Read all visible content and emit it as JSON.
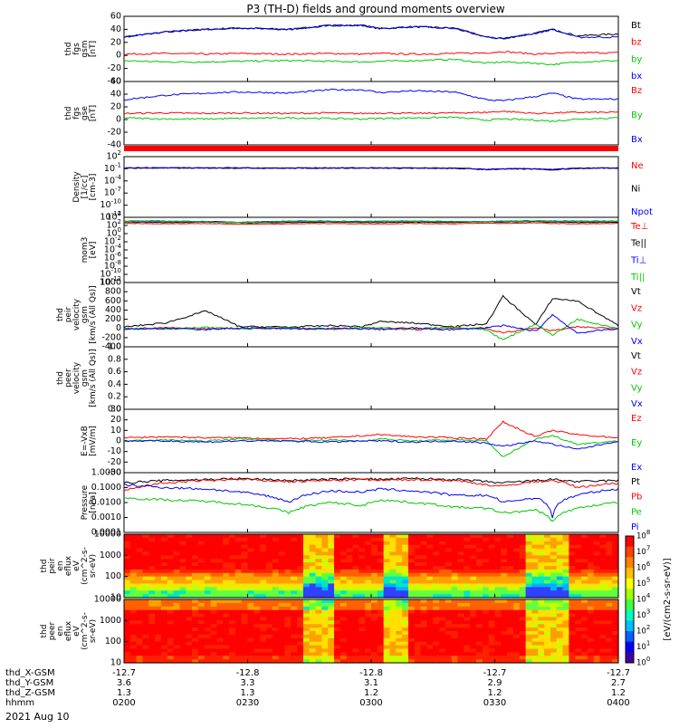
{
  "title": "P3 (TH-D) fields and ground moments overview",
  "date_label": "2021 Aug 10",
  "colorbar_label": "[eV/(cm2-s-sr-eV)]",
  "colorbar_ticks": [
    "10^8",
    "10^7",
    "10^6",
    "10^5",
    "10^4",
    "10^3",
    "10^2",
    "10^1",
    "10^0"
  ],
  "time_axis": {
    "row_labels": [
      "thd_X-GSM",
      "thd_Y-GSM",
      "thd_Z-GSM",
      "hhmm"
    ],
    "ticks": [
      {
        "t": 0,
        "values": [
          "-12.7",
          "3.6",
          "1.3",
          "0200"
        ]
      },
      {
        "t": 30,
        "values": [
          "-12.8",
          "3.3",
          "1.3",
          "0230"
        ]
      },
      {
        "t": 60,
        "values": [
          "-12.8",
          "3.1",
          "1.2",
          "0300"
        ]
      },
      {
        "t": 90,
        "values": [
          "-12.7",
          "2.9",
          "1.2",
          "0330"
        ]
      },
      {
        "t": 120,
        "values": [
          "-12.7",
          "2.7",
          "1.2",
          "0400"
        ]
      }
    ]
  },
  "panels": [
    {
      "id": "fgs_gsm",
      "ylabel": [
        "thd",
        "fgs",
        "gsm",
        "[nT]"
      ],
      "scale": "linear",
      "ylim": [
        -40,
        60
      ],
      "ticks": [
        "60",
        "40",
        "20",
        "0",
        "-20",
        "-40"
      ],
      "legend": [
        {
          "label": "Bt",
          "color": "#000000"
        },
        {
          "label": "bz",
          "color": "#ff0000"
        },
        {
          "label": "by",
          "color": "#00c800"
        },
        {
          "label": "bx",
          "color": "#0000ff"
        }
      ]
    },
    {
      "id": "fgs_gse",
      "ylabel": [
        "thd",
        "fgs",
        "gse",
        "[nT]"
      ],
      "scale": "linear",
      "ylim": [
        -55,
        60
      ],
      "ticks": [
        "60",
        "40",
        "20",
        "0",
        "-20",
        "-40"
      ],
      "legend": [
        {
          "label": "Bz",
          "color": "#ff0000"
        },
        {
          "label": "By",
          "color": "#00c800"
        },
        {
          "label": "Bx",
          "color": "#0000ff"
        }
      ]
    },
    {
      "id": "density",
      "ylabel": [
        "Density",
        "[1/cc]",
        "[cm-3]"
      ],
      "scale": "log",
      "ylim": [
        -13,
        3
      ],
      "ticks": [
        "10^2",
        "10^-1",
        "10^-4",
        "10^-7",
        "10^-10",
        "10^-12"
      ],
      "legend": [
        {
          "label": "Ne",
          "color": "#ff0000"
        },
        {
          "label": "Ni",
          "color": "#000000"
        },
        {
          "label": "Npot",
          "color": "#0000ff"
        }
      ]
    },
    {
      "id": "temperature",
      "ylabel": [
        "mom3",
        "[eV]"
      ],
      "scale": "log",
      "ylim": [
        -14,
        5
      ],
      "ticks": [
        "10^4",
        "10^2",
        "10^0",
        "10^-2",
        "10^-4",
        "10^-6",
        "10^-8",
        "10^-10",
        "10^-12"
      ],
      "legend": [
        {
          "label": "Te⊥",
          "color": "#ff0000"
        },
        {
          "label": "Te||",
          "color": "#000000"
        },
        {
          "label": "Ti⊥",
          "color": "#0000ff"
        },
        {
          "label": "Ti||",
          "color": "#00c800"
        }
      ]
    },
    {
      "id": "peir_velocity",
      "ylabel": [
        "thd",
        "peir",
        "velocity",
        "gsm",
        "[km/s (All Qs)]"
      ],
      "scale": "linear",
      "ylim": [
        -400,
        1000
      ],
      "ticks": [
        "1000",
        "800",
        "600",
        "400",
        "200",
        "0",
        "-200",
        "-400"
      ],
      "legend": [
        {
          "label": "Vt",
          "color": "#000000"
        },
        {
          "label": "Vz",
          "color": "#ff0000"
        },
        {
          "label": "Vy",
          "color": "#00c800"
        },
        {
          "label": "Vx",
          "color": "#0000ff"
        }
      ]
    },
    {
      "id": "peer_velocity",
      "ylabel": [
        "thd",
        "peer",
        "velocity",
        "gsm",
        "[km/s (All Qs)]"
      ],
      "scale": "linear",
      "ylim": [
        0,
        1
      ],
      "ticks": [
        "1.0",
        "0.8",
        "0.6",
        "0.4",
        "0.2",
        "0.0"
      ],
      "legend": [
        {
          "label": "Vt",
          "color": "#000000"
        },
        {
          "label": "Vz",
          "color": "#ff0000"
        },
        {
          "label": "Vy",
          "color": "#00c800"
        },
        {
          "label": "Vx",
          "color": "#0000ff"
        }
      ]
    },
    {
      "id": "efield",
      "ylabel": [
        "E=-VxB",
        "[mV/m]"
      ],
      "scale": "linear",
      "ylim": [
        -30,
        30
      ],
      "ticks": [
        "30",
        "20",
        "10",
        "0",
        "-10",
        "-20",
        "-30"
      ],
      "legend": [
        {
          "label": "Ez",
          "color": "#ff0000"
        },
        {
          "label": "Ey",
          "color": "#00c800"
        },
        {
          "label": "Ex",
          "color": "#0000ff"
        }
      ]
    },
    {
      "id": "pressure",
      "ylabel": [
        "Pressure",
        "[nPa]"
      ],
      "scale": "log",
      "ylim": [
        -4,
        0
      ],
      "ticks": [
        "1.0000",
        "0.1000",
        "0.0100",
        "0.0010",
        "0.0001"
      ],
      "legend": [
        {
          "label": "Pt",
          "color": "#000000"
        },
        {
          "label": "Pb",
          "color": "#ff0000"
        },
        {
          "label": "Pe",
          "color": "#00c800"
        },
        {
          "label": "Pi",
          "color": "#0000ff"
        }
      ]
    },
    {
      "id": "peir_spec",
      "ylabel": [
        "thd",
        "peir",
        "en",
        "eflux",
        "eV",
        "(cm^2-s-",
        "sr-eV)"
      ],
      "scale": "log",
      "ylim": [
        0.85,
        4.3
      ],
      "ticks": [
        "10000",
        "1000",
        "100",
        "10"
      ],
      "legend": []
    },
    {
      "id": "peer_spec",
      "ylabel": [
        "thd",
        "peer",
        "en",
        "eflux",
        "eV",
        "(cm^2-s-",
        "sr-eV)"
      ],
      "scale": "log",
      "ylim": [
        0.85,
        4.3
      ],
      "ticks": [
        "10000",
        "1000",
        "100",
        "10"
      ],
      "legend": []
    }
  ],
  "chart_data": {
    "type": "line",
    "title": "P3 (TH-D) fields and ground moments overview",
    "x_unit": "minutes after 2021 Aug 10 02:00 UT",
    "x": [
      0,
      10,
      20,
      28,
      40,
      50,
      58,
      62,
      70,
      80,
      88,
      92,
      100,
      104,
      110,
      120
    ],
    "panels": [
      {
        "id": "fgs_gsm",
        "series": [
          {
            "name": "Bt",
            "values": [
              28,
              36,
              40,
              42,
              40,
              46,
              46,
              41,
              44,
              42,
              28,
              26,
              34,
              40,
              30,
              33
            ]
          },
          {
            "name": "bz",
            "values": [
              2,
              3,
              2,
              3,
              2,
              3,
              2,
              3,
              2,
              3,
              4,
              6,
              2,
              3,
              4,
              4
            ]
          },
          {
            "name": "by",
            "values": [
              -8,
              -10,
              -10,
              -9,
              -8,
              -9,
              -10,
              -9,
              -8,
              -6,
              -12,
              -10,
              -12,
              -14,
              -10,
              -8
            ]
          },
          {
            "name": "bx",
            "values": [
              28,
              36,
              40,
              42,
              40,
              46,
              46,
              41,
              44,
              42,
              28,
              26,
              34,
              40,
              28,
              28
            ]
          }
        ]
      },
      {
        "id": "fgs_gse",
        "series": [
          {
            "name": "Bz",
            "values": [
              2,
              3,
              2,
              3,
              2,
              3,
              2,
              3,
              2,
              3,
              4,
              6,
              2,
              3,
              4,
              4
            ]
          },
          {
            "name": "By",
            "values": [
              -6,
              -8,
              -8,
              -7,
              -6,
              -7,
              -8,
              -7,
              -6,
              -5,
              -10,
              -8,
              -10,
              -12,
              -8,
              -6
            ]
          },
          {
            "name": "Bx",
            "values": [
              27,
              35,
              39,
              41,
              39,
              45,
              45,
              40,
              43,
              41,
              27,
              25,
              33,
              39,
              28,
              28
            ]
          }
        ]
      },
      {
        "id": "density",
        "series": [
          {
            "name": "Ne",
            "values": [
              1.0,
              1.0,
              1.0,
              1.1,
              0.9,
              1.0,
              1.0,
              1.0,
              0.9,
              0.8,
              0.4,
              0.5,
              0.6,
              0.3,
              0.8,
              1.0
            ]
          },
          {
            "name": "Ni",
            "values": [
              1.0,
              1.0,
              1.0,
              1.0,
              0.9,
              1.0,
              1.0,
              1.0,
              0.9,
              0.8,
              0.4,
              0.5,
              0.6,
              0.3,
              0.8,
              1.0
            ]
          },
          {
            "name": "Npot",
            "values": [
              1.2,
              1.2,
              1.1,
              1.1,
              1.0,
              1.1,
              1.1,
              1.1,
              1.0,
              0.9,
              0.5,
              0.6,
              0.7,
              0.4,
              0.9,
              1.1
            ]
          }
        ]
      },
      {
        "id": "temperature",
        "series": [
          {
            "name": "Te⊥",
            "values": [
              3.2,
              3.1,
              3.2,
              3.0,
              3.1,
              3.2,
              3.1,
              3.1,
              3.2,
              3.1,
              3.3,
              3.2,
              3.4,
              3.2,
              3.1,
              3.2
            ]
          },
          {
            "name": "Te||",
            "values": [
              3.6,
              3.5,
              3.6,
              3.4,
              3.5,
              3.6,
              3.5,
              3.5,
              3.6,
              3.5,
              3.7,
              3.6,
              3.8,
              3.6,
              3.5,
              3.6
            ]
          },
          {
            "name": "Ti⊥",
            "values": [
              3.9,
              3.9,
              3.8,
              3.6,
              3.9,
              3.9,
              3.8,
              3.9,
              3.9,
              3.8,
              3.8,
              3.9,
              4.0,
              3.9,
              3.9,
              3.9
            ]
          },
          {
            "name": "Ti||",
            "values": [
              3.8,
              3.8,
              3.7,
              3.5,
              3.8,
              3.8,
              3.7,
              3.8,
              3.8,
              3.7,
              3.7,
              3.8,
              3.9,
              3.8,
              3.8,
              3.8
            ]
          }
        ]
      },
      {
        "id": "peir_velocity",
        "series": [
          {
            "name": "Vt",
            "values": [
              30,
              120,
              380,
              40,
              30,
              60,
              40,
              150,
              120,
              40,
              100,
              700,
              80,
              650,
              600,
              60
            ]
          },
          {
            "name": "Vz",
            "values": [
              0,
              10,
              -10,
              5,
              0,
              -20,
              10,
              0,
              -30,
              10,
              0,
              -100,
              20,
              -50,
              30,
              0
            ]
          },
          {
            "name": "Vy",
            "values": [
              0,
              -10,
              20,
              -10,
              10,
              -20,
              10,
              20,
              -10,
              30,
              -30,
              -250,
              100,
              -150,
              200,
              0
            ]
          },
          {
            "name": "Vx",
            "values": [
              -10,
              0,
              -20,
              10,
              -10,
              0,
              -10,
              -20,
              10,
              -30,
              20,
              60,
              -60,
              300,
              -100,
              0
            ]
          }
        ]
      },
      {
        "id": "efield",
        "series": [
          {
            "name": "Ez",
            "values": [
              3,
              4,
              3,
              3,
              2,
              3,
              5,
              6,
              4,
              3,
              2,
              18,
              4,
              10,
              6,
              3
            ]
          },
          {
            "name": "Ey",
            "values": [
              0,
              1,
              0,
              2,
              0,
              1,
              0,
              2,
              0,
              1,
              0,
              -15,
              2,
              5,
              -3,
              0
            ]
          },
          {
            "name": "Ex",
            "values": [
              0,
              0,
              -1,
              0,
              0,
              -1,
              0,
              0,
              -1,
              0,
              -2,
              -5,
              0,
              -3,
              -8,
              0
            ]
          }
        ]
      },
      {
        "id": "pressure",
        "series": [
          {
            "name": "Pt",
            "values": [
              0.2,
              0.3,
              0.35,
              0.4,
              0.3,
              0.35,
              0.4,
              0.35,
              0.4,
              0.35,
              0.25,
              0.2,
              0.3,
              0.35,
              0.25,
              0.3
            ]
          },
          {
            "name": "Pb",
            "values": [
              0.06,
              0.2,
              0.3,
              0.35,
              0.25,
              0.3,
              0.35,
              0.3,
              0.35,
              0.3,
              0.15,
              0.12,
              0.25,
              0.3,
              0.1,
              0.2
            ]
          },
          {
            "name": "Pe",
            "values": [
              0.02,
              0.015,
              0.012,
              0.008,
              0.002,
              0.01,
              0.006,
              0.015,
              0.01,
              0.005,
              0.004,
              0.002,
              0.003,
              0.0005,
              0.004,
              0.01
            ]
          },
          {
            "name": "Pi",
            "values": [
              0.15,
              0.1,
              0.08,
              0.05,
              0.01,
              0.06,
              0.05,
              0.08,
              0.06,
              0.03,
              0.03,
              0.01,
              0.02,
              0.001,
              0.03,
              0.08
            ]
          }
        ]
      }
    ]
  }
}
